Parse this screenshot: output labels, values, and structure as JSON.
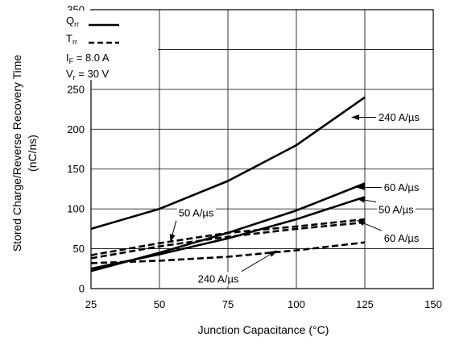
{
  "chart_data": {
    "type": "line",
    "title": "",
    "xlabel": "Junction Capacitance (°C)",
    "ylabel_line1": "Stored Charge/Reverse Recovery Time",
    "ylabel_line2": "(nC/ns)",
    "xlim": [
      25,
      150
    ],
    "ylim": [
      0,
      350
    ],
    "xticks": [
      25,
      50,
      75,
      100,
      125,
      150
    ],
    "yticks": [
      0,
      50,
      100,
      150,
      200,
      250,
      300,
      350
    ],
    "grid": true,
    "legend": {
      "placement": "top-left",
      "entries": [
        {
          "main": "Q",
          "sub": "rr",
          "style": "solid"
        },
        {
          "main": "T",
          "sub": "rr",
          "style": "dashed"
        }
      ],
      "conditions": [
        {
          "pre": "I",
          "sub": "F",
          "post": " = 8.0 A"
        },
        {
          "pre": "V",
          "sub": "r",
          "post": " = 30 V"
        }
      ]
    },
    "series": [
      {
        "id": "qrr-240",
        "param": "Q_rr",
        "style": "solid",
        "x": [
          25,
          50,
          75,
          100,
          125
        ],
        "y": [
          75,
          100,
          135,
          180,
          240
        ]
      },
      {
        "id": "qrr-60",
        "param": "Q_rr",
        "style": "solid",
        "x": [
          25,
          50,
          75,
          100,
          125
        ],
        "y": [
          22,
          45,
          70,
          98,
          132
        ]
      },
      {
        "id": "qrr-50",
        "param": "Q_rr",
        "style": "solid",
        "x": [
          25,
          50,
          75,
          100,
          125
        ],
        "y": [
          25,
          43,
          63,
          87,
          115
        ]
      },
      {
        "id": "trr-60",
        "param": "T_rr",
        "style": "dashed",
        "x": [
          25,
          50,
          75,
          100,
          125
        ],
        "y": [
          42,
          57,
          70,
          78,
          87
        ]
      },
      {
        "id": "trr-50",
        "param": "T_rr",
        "style": "dashed",
        "x": [
          25,
          50,
          75,
          100,
          125
        ],
        "y": [
          38,
          53,
          65,
          75,
          83
        ]
      },
      {
        "id": "trr-240",
        "param": "T_rr",
        "style": "dashed",
        "x": [
          25,
          50,
          75,
          100,
          125
        ],
        "y": [
          32,
          35,
          40,
          48,
          58
        ]
      }
    ],
    "annotations": [
      {
        "text": "240 A/µs",
        "series": "qrr-240",
        "point": [
          120,
          215
        ],
        "label_at": [
          130,
          215
        ],
        "anchor": "start"
      },
      {
        "text": "60 A/µs",
        "series": "qrr-60",
        "point": [
          122,
          127
        ],
        "label_at": [
          132,
          127
        ],
        "anchor": "start"
      },
      {
        "text": "50 A/µs",
        "series": "qrr-50",
        "point": [
          122,
          113
        ],
        "label_at": [
          130,
          99
        ],
        "anchor": "start"
      },
      {
        "text": "60 A/µs",
        "series": "trr-60",
        "point": [
          122,
          86
        ],
        "label_at": [
          132,
          63
        ],
        "anchor": "start"
      },
      {
        "text": "50 A/µs",
        "series": "trr-50",
        "point": [
          54,
          58
        ],
        "label_at": [
          57,
          95
        ],
        "anchor": "start"
      },
      {
        "text": "240 A/µs",
        "series": "trr-240",
        "point": [
          93,
          48
        ],
        "label_at": [
          64,
          12
        ],
        "anchor": "start"
      }
    ]
  }
}
